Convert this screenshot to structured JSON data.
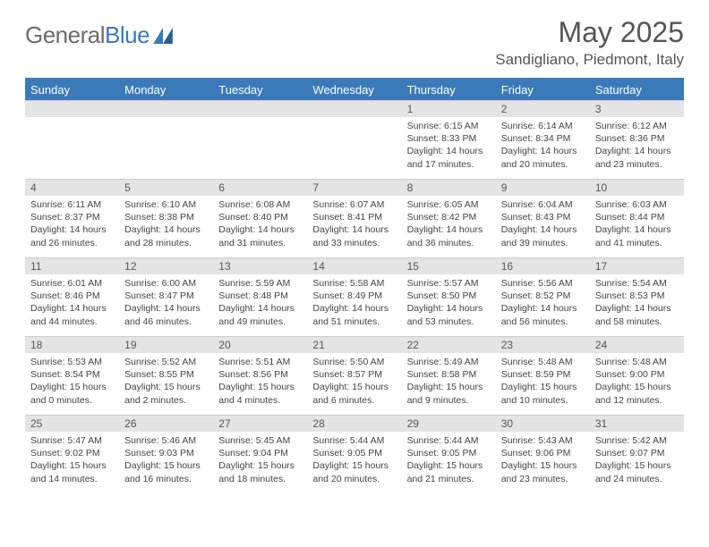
{
  "logo": {
    "text_general": "General",
    "text_blue": "Blue"
  },
  "header": {
    "month": "May 2025",
    "location": "Sandigliano, Piedmont, Italy"
  },
  "colors": {
    "accent": "#3a7ab8",
    "header_row": "#e4e4e4"
  },
  "weekdays": [
    "Sunday",
    "Monday",
    "Tuesday",
    "Wednesday",
    "Thursday",
    "Friday",
    "Saturday"
  ],
  "weeks": [
    [
      null,
      null,
      null,
      null,
      {
        "n": "1",
        "sr": "Sunrise: 6:15 AM",
        "ss": "Sunset: 8:33 PM",
        "dl": "Daylight: 14 hours and 17 minutes."
      },
      {
        "n": "2",
        "sr": "Sunrise: 6:14 AM",
        "ss": "Sunset: 8:34 PM",
        "dl": "Daylight: 14 hours and 20 minutes."
      },
      {
        "n": "3",
        "sr": "Sunrise: 6:12 AM",
        "ss": "Sunset: 8:36 PM",
        "dl": "Daylight: 14 hours and 23 minutes."
      }
    ],
    [
      {
        "n": "4",
        "sr": "Sunrise: 6:11 AM",
        "ss": "Sunset: 8:37 PM",
        "dl": "Daylight: 14 hours and 26 minutes."
      },
      {
        "n": "5",
        "sr": "Sunrise: 6:10 AM",
        "ss": "Sunset: 8:38 PM",
        "dl": "Daylight: 14 hours and 28 minutes."
      },
      {
        "n": "6",
        "sr": "Sunrise: 6:08 AM",
        "ss": "Sunset: 8:40 PM",
        "dl": "Daylight: 14 hours and 31 minutes."
      },
      {
        "n": "7",
        "sr": "Sunrise: 6:07 AM",
        "ss": "Sunset: 8:41 PM",
        "dl": "Daylight: 14 hours and 33 minutes."
      },
      {
        "n": "8",
        "sr": "Sunrise: 6:05 AM",
        "ss": "Sunset: 8:42 PM",
        "dl": "Daylight: 14 hours and 36 minutes."
      },
      {
        "n": "9",
        "sr": "Sunrise: 6:04 AM",
        "ss": "Sunset: 8:43 PM",
        "dl": "Daylight: 14 hours and 39 minutes."
      },
      {
        "n": "10",
        "sr": "Sunrise: 6:03 AM",
        "ss": "Sunset: 8:44 PM",
        "dl": "Daylight: 14 hours and 41 minutes."
      }
    ],
    [
      {
        "n": "11",
        "sr": "Sunrise: 6:01 AM",
        "ss": "Sunset: 8:46 PM",
        "dl": "Daylight: 14 hours and 44 minutes."
      },
      {
        "n": "12",
        "sr": "Sunrise: 6:00 AM",
        "ss": "Sunset: 8:47 PM",
        "dl": "Daylight: 14 hours and 46 minutes."
      },
      {
        "n": "13",
        "sr": "Sunrise: 5:59 AM",
        "ss": "Sunset: 8:48 PM",
        "dl": "Daylight: 14 hours and 49 minutes."
      },
      {
        "n": "14",
        "sr": "Sunrise: 5:58 AM",
        "ss": "Sunset: 8:49 PM",
        "dl": "Daylight: 14 hours and 51 minutes."
      },
      {
        "n": "15",
        "sr": "Sunrise: 5:57 AM",
        "ss": "Sunset: 8:50 PM",
        "dl": "Daylight: 14 hours and 53 minutes."
      },
      {
        "n": "16",
        "sr": "Sunrise: 5:56 AM",
        "ss": "Sunset: 8:52 PM",
        "dl": "Daylight: 14 hours and 56 minutes."
      },
      {
        "n": "17",
        "sr": "Sunrise: 5:54 AM",
        "ss": "Sunset: 8:53 PM",
        "dl": "Daylight: 14 hours and 58 minutes."
      }
    ],
    [
      {
        "n": "18",
        "sr": "Sunrise: 5:53 AM",
        "ss": "Sunset: 8:54 PM",
        "dl": "Daylight: 15 hours and 0 minutes."
      },
      {
        "n": "19",
        "sr": "Sunrise: 5:52 AM",
        "ss": "Sunset: 8:55 PM",
        "dl": "Daylight: 15 hours and 2 minutes."
      },
      {
        "n": "20",
        "sr": "Sunrise: 5:51 AM",
        "ss": "Sunset: 8:56 PM",
        "dl": "Daylight: 15 hours and 4 minutes."
      },
      {
        "n": "21",
        "sr": "Sunrise: 5:50 AM",
        "ss": "Sunset: 8:57 PM",
        "dl": "Daylight: 15 hours and 6 minutes."
      },
      {
        "n": "22",
        "sr": "Sunrise: 5:49 AM",
        "ss": "Sunset: 8:58 PM",
        "dl": "Daylight: 15 hours and 9 minutes."
      },
      {
        "n": "23",
        "sr": "Sunrise: 5:48 AM",
        "ss": "Sunset: 8:59 PM",
        "dl": "Daylight: 15 hours and 10 minutes."
      },
      {
        "n": "24",
        "sr": "Sunrise: 5:48 AM",
        "ss": "Sunset: 9:00 PM",
        "dl": "Daylight: 15 hours and 12 minutes."
      }
    ],
    [
      {
        "n": "25",
        "sr": "Sunrise: 5:47 AM",
        "ss": "Sunset: 9:02 PM",
        "dl": "Daylight: 15 hours and 14 minutes."
      },
      {
        "n": "26",
        "sr": "Sunrise: 5:46 AM",
        "ss": "Sunset: 9:03 PM",
        "dl": "Daylight: 15 hours and 16 minutes."
      },
      {
        "n": "27",
        "sr": "Sunrise: 5:45 AM",
        "ss": "Sunset: 9:04 PM",
        "dl": "Daylight: 15 hours and 18 minutes."
      },
      {
        "n": "28",
        "sr": "Sunrise: 5:44 AM",
        "ss": "Sunset: 9:05 PM",
        "dl": "Daylight: 15 hours and 20 minutes."
      },
      {
        "n": "29",
        "sr": "Sunrise: 5:44 AM",
        "ss": "Sunset: 9:05 PM",
        "dl": "Daylight: 15 hours and 21 minutes."
      },
      {
        "n": "30",
        "sr": "Sunrise: 5:43 AM",
        "ss": "Sunset: 9:06 PM",
        "dl": "Daylight: 15 hours and 23 minutes."
      },
      {
        "n": "31",
        "sr": "Sunrise: 5:42 AM",
        "ss": "Sunset: 9:07 PM",
        "dl": "Daylight: 15 hours and 24 minutes."
      }
    ]
  ]
}
